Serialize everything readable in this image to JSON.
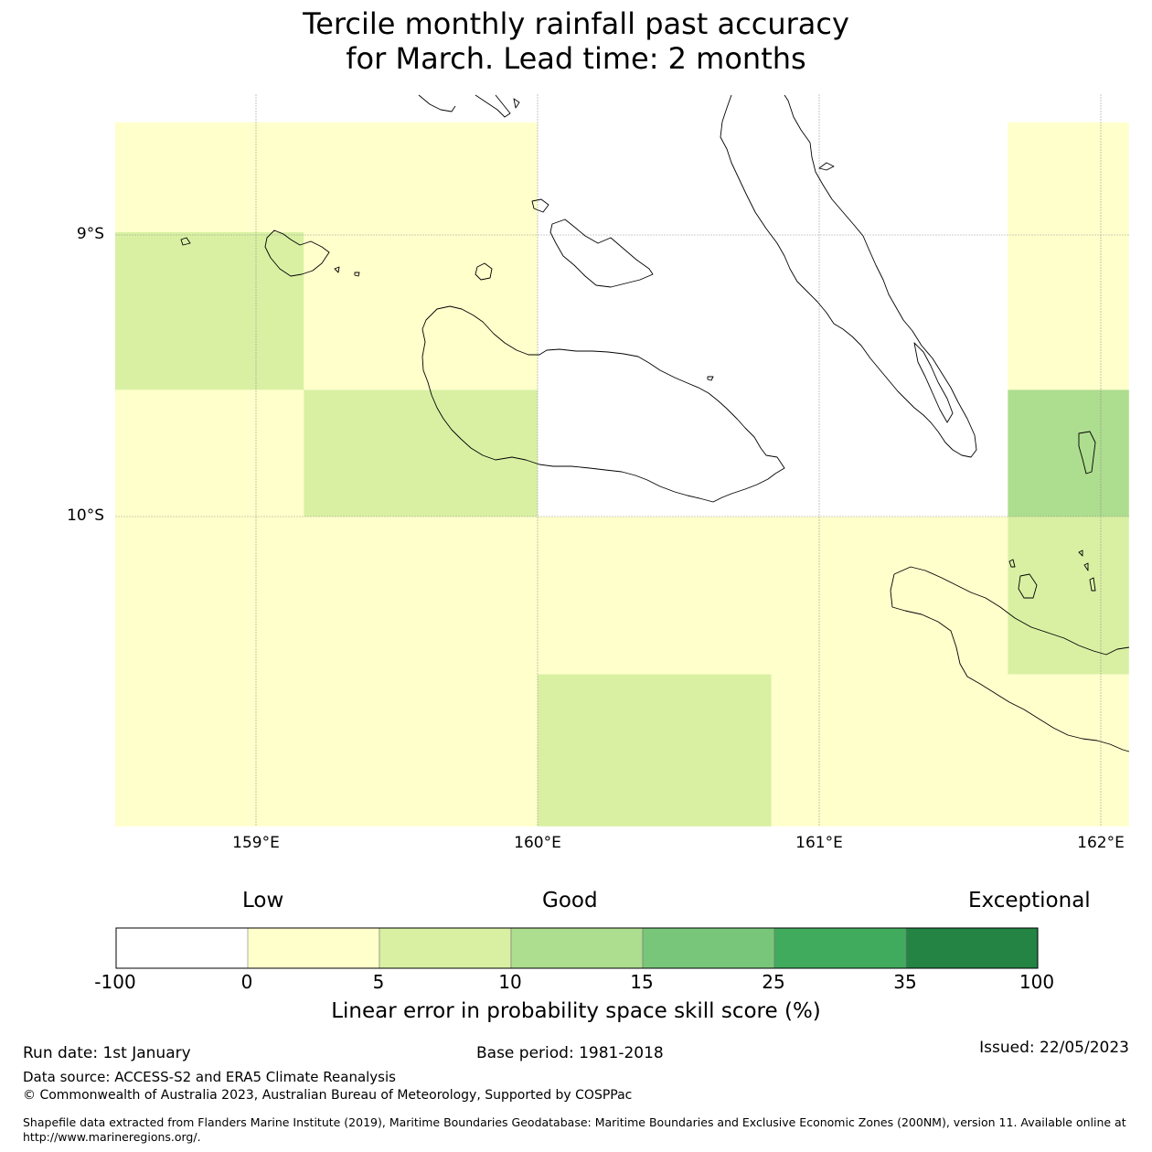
{
  "title": {
    "line1": "Tercile monthly rainfall past accuracy",
    "line2": "for March. Lead time: 2 months"
  },
  "map": {
    "lat_labels": [
      "9°S",
      "10°S"
    ],
    "lon_labels": [
      "159°E",
      "160°E",
      "161°E",
      "162°E"
    ],
    "extent": {
      "lon_min": 158.5,
      "lon_max": 162.1,
      "lat_top": -8.6,
      "lat_bottom": -11.1
    },
    "grid_cells": [
      {
        "lon": [
          158.5,
          160.0
        ],
        "lat": [
          -8.6,
          -8.99
        ],
        "category": "0-5"
      },
      {
        "lon": [
          158.5,
          159.17
        ],
        "lat": [
          -8.99,
          -9.55
        ],
        "category": "5-10"
      },
      {
        "lon": [
          159.17,
          160.0
        ],
        "lat": [
          -8.99,
          -9.55
        ],
        "category": "0-5"
      },
      {
        "lon": [
          158.5,
          159.17
        ],
        "lat": [
          -9.55,
          -10.0
        ],
        "category": "0-5"
      },
      {
        "lon": [
          159.17,
          160.0
        ],
        "lat": [
          -9.55,
          -10.0
        ],
        "category": "5-10"
      },
      {
        "lon": [
          160.0,
          161.67
        ],
        "lat": [
          -8.6,
          -10.0
        ],
        "category": "-100-0"
      },
      {
        "lon": [
          161.67,
          162.1
        ],
        "lat": [
          -8.6,
          -9.55
        ],
        "category": "0-5"
      },
      {
        "lon": [
          161.67,
          162.1
        ],
        "lat": [
          -9.55,
          -10.0
        ],
        "category": "10-15"
      },
      {
        "lon": [
          158.5,
          161.67
        ],
        "lat": [
          -10.0,
          -10.56
        ],
        "category": "0-5"
      },
      {
        "lon": [
          161.67,
          162.1
        ],
        "lat": [
          -10.0,
          -10.56
        ],
        "category": "5-10"
      },
      {
        "lon": [
          158.5,
          160.0
        ],
        "lat": [
          -10.56,
          -11.1
        ],
        "category": "0-5"
      },
      {
        "lon": [
          160.0,
          160.83
        ],
        "lat": [
          -10.56,
          -11.1
        ],
        "category": "5-10"
      },
      {
        "lon": [
          160.83,
          162.1
        ],
        "lat": [
          -10.56,
          -11.1
        ],
        "category": "0-5"
      }
    ]
  },
  "colorbar": {
    "head_low": "Low",
    "head_good": "Good",
    "head_exceptional": "Exceptional",
    "ticks": [
      "-100",
      "0",
      "5",
      "10",
      "15",
      "25",
      "35",
      "100"
    ],
    "colors": [
      "#ffffff",
      "#ffffcc",
      "#d9f0a3",
      "#addd8e",
      "#78c679",
      "#41ab5d",
      "#238443"
    ],
    "categories": [
      "-100-0",
      "0-5",
      "5-10",
      "10-15",
      "15-25",
      "25-35",
      "35-100"
    ],
    "title": "Linear error in probability space skill score (%)"
  },
  "footer": {
    "run_date": "Run date: 1st January",
    "base_period": "Base period: 1981-2018",
    "issued": "Issued: 22/05/2023",
    "data_source": "Data source: ACCESS-S2 and ERA5 Climate Reanalysis",
    "copyright": "© Commonwealth of Australia 2023, Australian Bureau of Meteorology, Supported by COSPPac",
    "shapefile": "Shapefile data extracted from Flanders Marine Institute (2019), Maritime Boundaries Geodatabase: Maritime Boundaries and Exclusive Economic Zones (200NM), version 11. Available online at http://www.marineregions.org/."
  }
}
